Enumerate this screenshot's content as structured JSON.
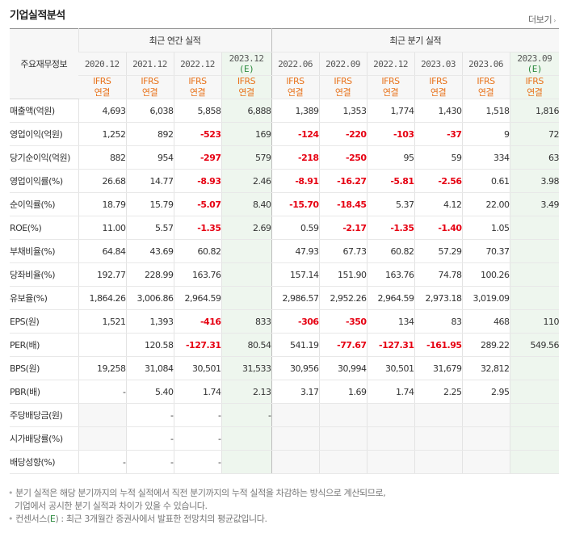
{
  "title": "기업실적분석",
  "more_label": "더보기",
  "table": {
    "row_header_label": "주요재무정보",
    "annual_group_label": "최근 연간 실적",
    "quarter_group_label": "최근 분기 실적",
    "columns": [
      {
        "date": "2020.12",
        "est": "",
        "acc1": "IFRS",
        "acc2": "연결"
      },
      {
        "date": "2021.12",
        "est": "",
        "acc1": "IFRS",
        "acc2": "연결"
      },
      {
        "date": "2022.12",
        "est": "",
        "acc1": "IFRS",
        "acc2": "연결"
      },
      {
        "date": "2023.12",
        "est": "(E)",
        "acc1": "IFRS",
        "acc2": "연결"
      },
      {
        "date": "2022.06",
        "est": "",
        "acc1": "IFRS",
        "acc2": "연결"
      },
      {
        "date": "2022.09",
        "est": "",
        "acc1": "IFRS",
        "acc2": "연결"
      },
      {
        "date": "2022.12",
        "est": "",
        "acc1": "IFRS",
        "acc2": "연결"
      },
      {
        "date": "2023.03",
        "est": "",
        "acc1": "IFRS",
        "acc2": "연결"
      },
      {
        "date": "2023.06",
        "est": "",
        "acc1": "IFRS",
        "acc2": "연결"
      },
      {
        "date": "2023.09",
        "est": "(E)",
        "acc1": "IFRS",
        "acc2": "연결"
      }
    ],
    "rows": [
      {
        "label": "매출액(억원)",
        "values": [
          "4,693",
          "6,038",
          "5,858",
          "6,888",
          "1,389",
          "1,353",
          "1,774",
          "1,430",
          "1,518",
          "1,816"
        ]
      },
      {
        "label": "영업이익(억원)",
        "values": [
          "1,252",
          "892",
          "-523",
          "169",
          "-124",
          "-220",
          "-103",
          "-37",
          "9",
          "72"
        ]
      },
      {
        "label": "당기순이익(억원)",
        "values": [
          "882",
          "954",
          "-297",
          "579",
          "-218",
          "-250",
          "95",
          "59",
          "334",
          "63"
        ]
      },
      {
        "label": "영업이익률(%)",
        "values": [
          "26.68",
          "14.77",
          "-8.93",
          "2.46",
          "-8.91",
          "-16.27",
          "-5.81",
          "-2.56",
          "0.61",
          "3.98"
        ]
      },
      {
        "label": "순이익률(%)",
        "values": [
          "18.79",
          "15.79",
          "-5.07",
          "8.40",
          "-15.70",
          "-18.45",
          "5.37",
          "4.12",
          "22.00",
          "3.49"
        ]
      },
      {
        "label": "ROE(%)",
        "values": [
          "11.00",
          "5.57",
          "-1.35",
          "2.69",
          "0.59",
          "-2.17",
          "-1.35",
          "-1.40",
          "1.05",
          ""
        ]
      },
      {
        "label": "부채비율(%)",
        "values": [
          "64.84",
          "43.69",
          "60.82",
          "",
          "47.93",
          "67.73",
          "60.82",
          "57.29",
          "70.37",
          ""
        ]
      },
      {
        "label": "당좌비율(%)",
        "values": [
          "192.77",
          "228.99",
          "163.76",
          "",
          "157.14",
          "151.90",
          "163.76",
          "74.78",
          "100.26",
          ""
        ]
      },
      {
        "label": "유보율(%)",
        "values": [
          "1,864.26",
          "3,006.86",
          "2,964.59",
          "",
          "2,986.57",
          "2,952.26",
          "2,964.59",
          "2,973.18",
          "3,019.09",
          ""
        ]
      },
      {
        "label": "EPS(원)",
        "values": [
          "1,521",
          "1,393",
          "-416",
          "833",
          "-306",
          "-350",
          "134",
          "83",
          "468",
          "110"
        ]
      },
      {
        "label": "PER(배)",
        "values": [
          "",
          "120.58",
          "-127.31",
          "80.54",
          "541.19",
          "-77.67",
          "-127.31",
          "-161.95",
          "289.22",
          "549.56"
        ]
      },
      {
        "label": "BPS(원)",
        "values": [
          "19,258",
          "31,084",
          "30,501",
          "31,533",
          "30,956",
          "30,994",
          "30,501",
          "31,679",
          "32,812",
          ""
        ]
      },
      {
        "label": "PBR(배)",
        "values": [
          "-",
          "5.40",
          "1.74",
          "2.13",
          "3.17",
          "1.69",
          "1.74",
          "2.25",
          "2.95",
          ""
        ]
      },
      {
        "label": "주당배당금(원)",
        "values": [
          "",
          "-",
          "-",
          "-",
          "",
          "",
          "",
          "",
          "",
          ""
        ]
      },
      {
        "label": "시가배당률(%)",
        "values": [
          "",
          "-",
          "-",
          "",
          "",
          "",
          "",
          "",
          "",
          ""
        ]
      },
      {
        "label": "배당성향(%)",
        "values": [
          "-",
          "-",
          "-",
          "",
          "",
          "",
          "",
          "",
          "",
          ""
        ]
      }
    ]
  },
  "notes": {
    "line1": "분기 실적은 해당 분기까지의 누적 실적에서 직전 분기까지의 누적 실적을 차감하는 방식으로 계산되므로,",
    "line2": "기업에서 공시한 분기 실적과 차이가 있을 수 있습니다.",
    "line3_pre": "컨센서스(",
    "line3_mark": "E",
    "line3_post": ") : 최근 3개월간 증권사에서 발표한 전망치의 평균값입니다."
  }
}
